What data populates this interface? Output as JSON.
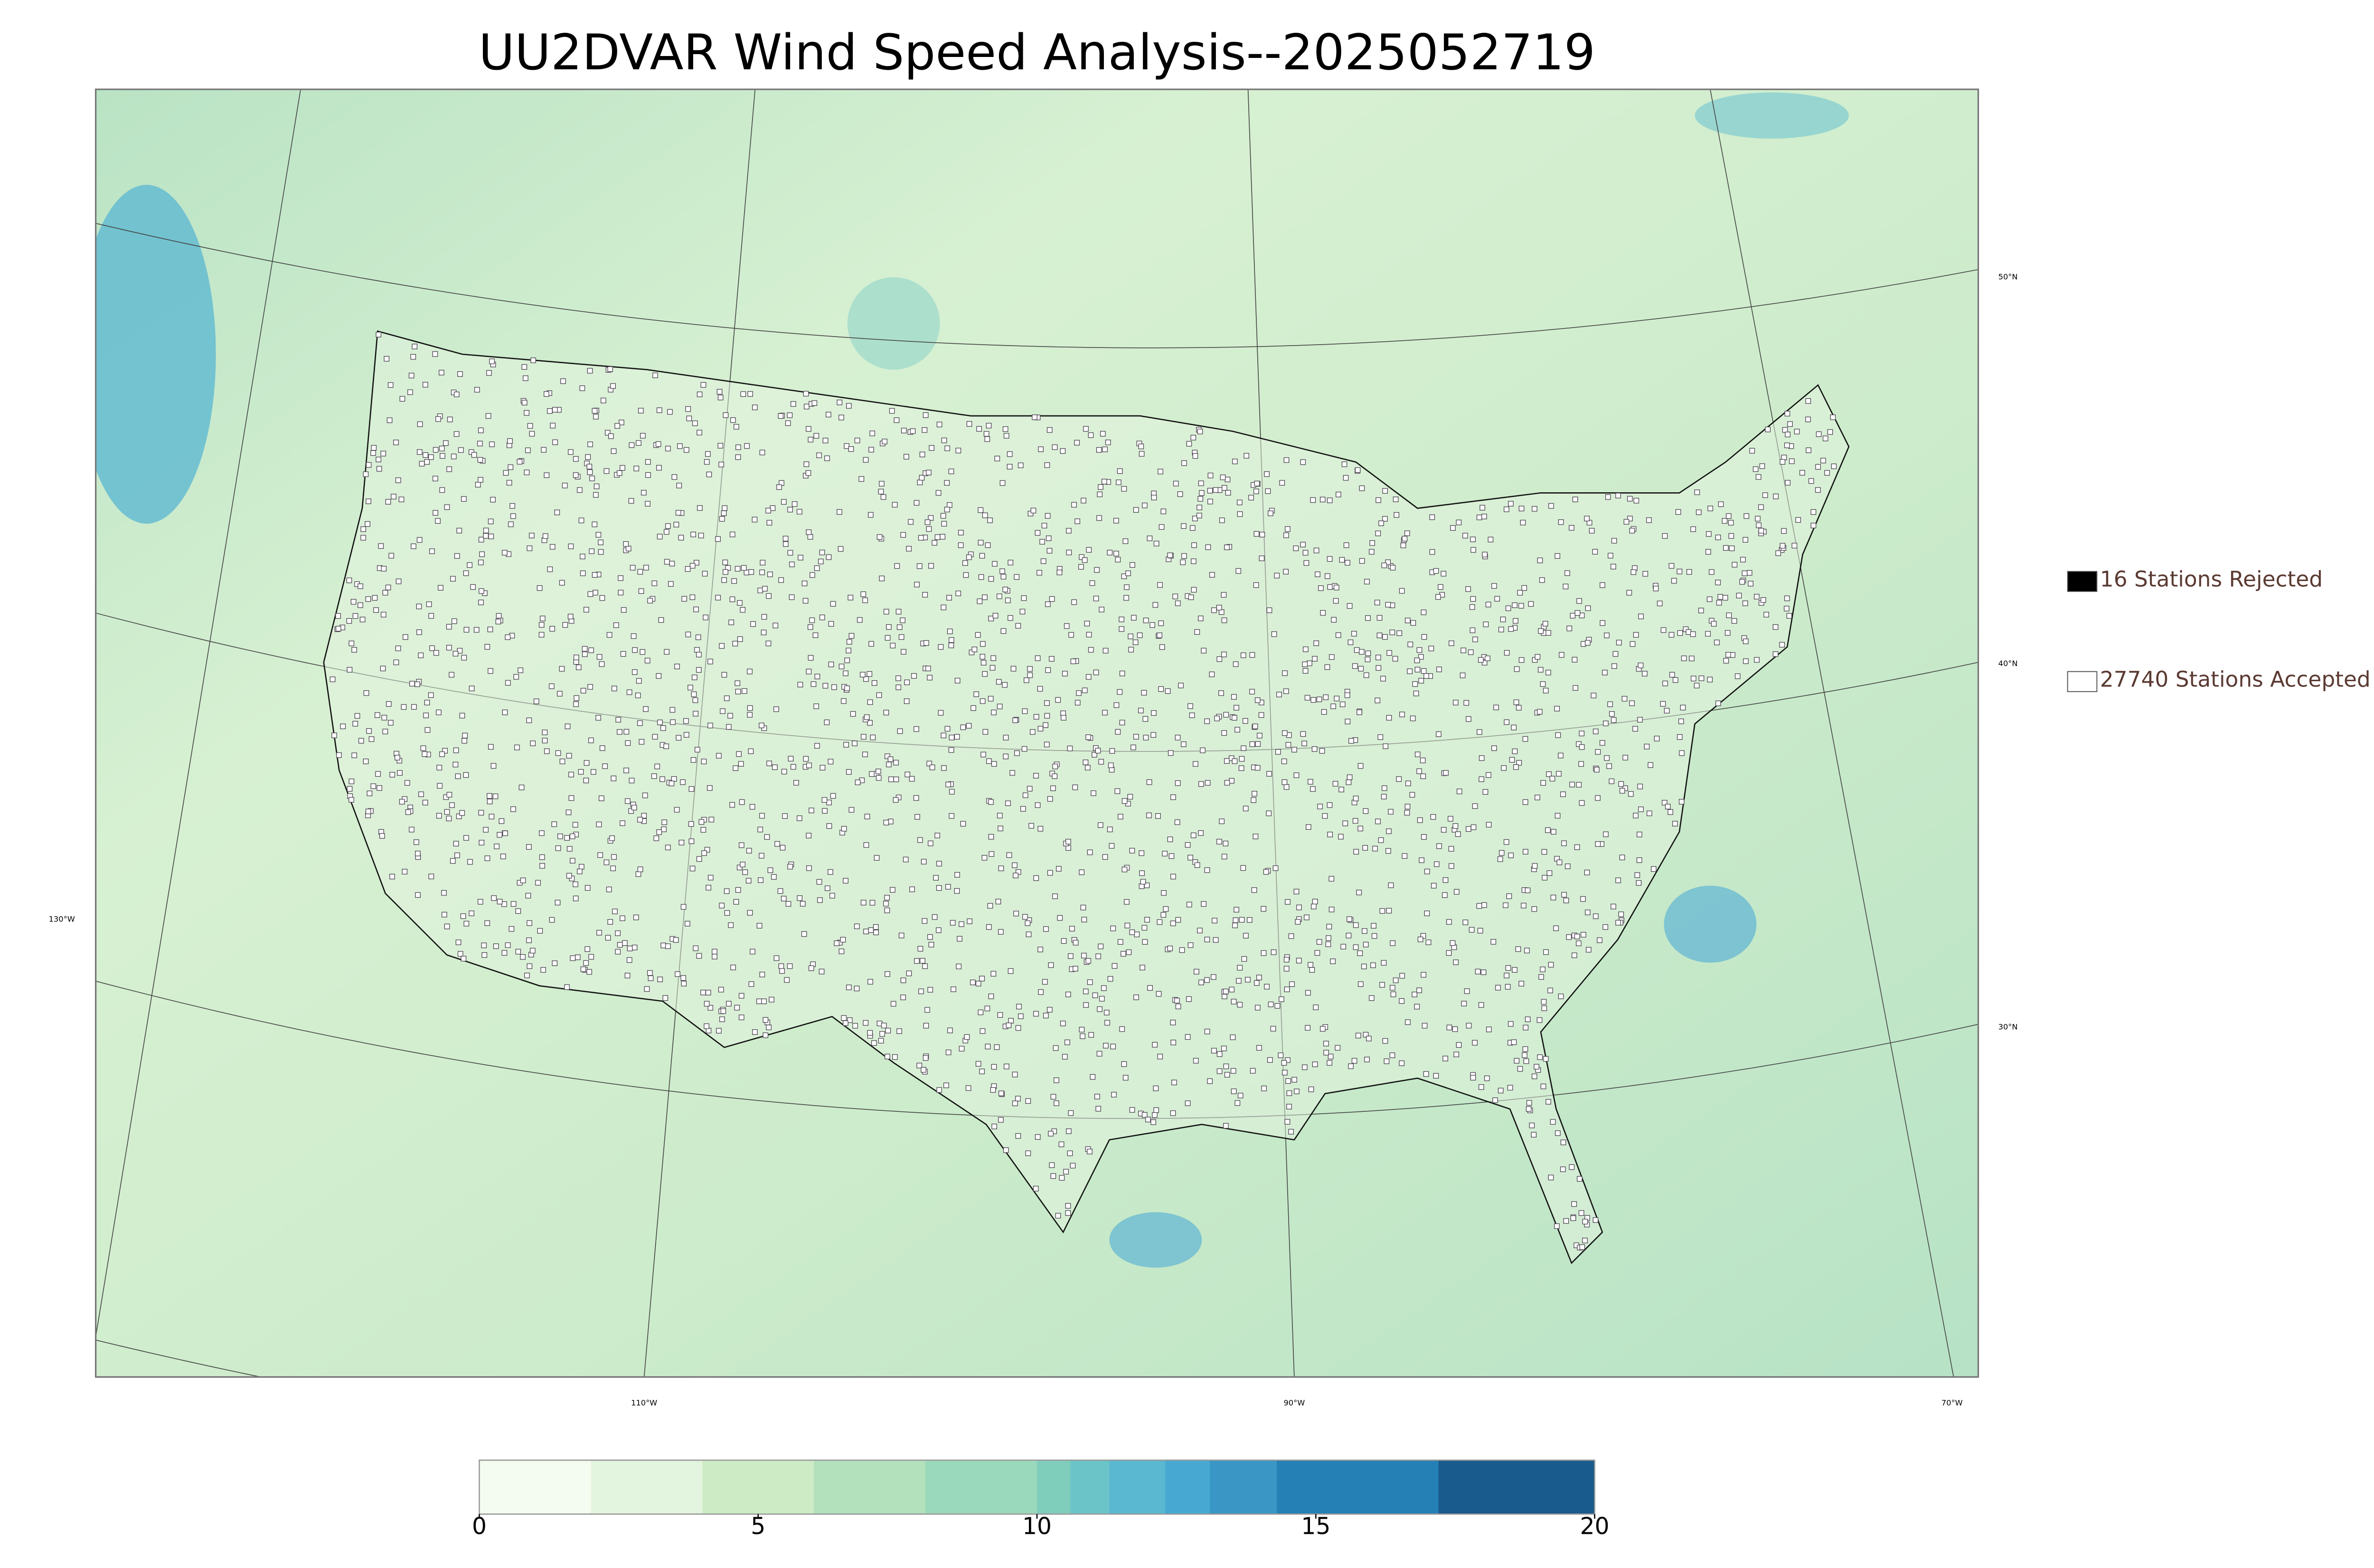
{
  "title": "UU2DVAR Wind Speed Analysis--2025052719",
  "map": {
    "lat_labels": [
      "50°N",
      "40°N",
      "30°N"
    ],
    "lon_labels": [
      "130°W",
      "110°W",
      "90°W",
      "70°W"
    ]
  },
  "legend": [
    {
      "label": "16 Stations Rejected",
      "color": "#000000"
    },
    {
      "label": "27740 Stations Accepted",
      "color": "#ffffff"
    }
  ],
  "colorbar": {
    "lim": [
      0,
      20
    ],
    "ticks": [
      0,
      5,
      10,
      15,
      20
    ],
    "bounds": [
      0,
      2,
      4,
      6,
      8,
      10,
      10.6,
      11.3,
      12.3,
      13.1,
      14.3,
      17.2,
      20
    ],
    "colors": [
      "#f4fbf0",
      "#e4f5df",
      "#cdecc5",
      "#b2e1bc",
      "#9ad9bb",
      "#7fcdbb",
      "#6bc4c8",
      "#5ab8d0",
      "#47a9d2",
      "#3a96c5",
      "#2580b6",
      "#195b8c"
    ]
  }
}
